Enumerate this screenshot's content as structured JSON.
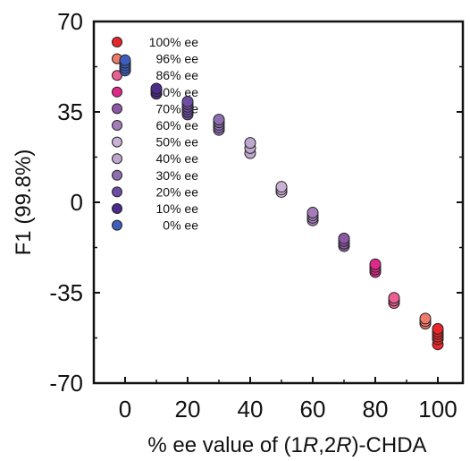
{
  "chart_data": {
    "type": "scatter",
    "title": "",
    "xlabel": {
      "parts": [
        {
          "text": "% ee value of (1",
          "italic": false
        },
        {
          "text": "R",
          "italic": true
        },
        {
          "text": ",2",
          "italic": false
        },
        {
          "text": "R",
          "italic": true
        },
        {
          "text": ")-CHDA",
          "italic": false
        }
      ]
    },
    "ylabel": "F1 (99.8%)",
    "xlim": [
      -10,
      108
    ],
    "ylim": [
      70,
      -70
    ],
    "y_inverted": true,
    "xticks": [
      {
        "value": 0,
        "label": "0"
      },
      {
        "value": 20,
        "label": "20"
      },
      {
        "value": 40,
        "label": "40"
      },
      {
        "value": 60,
        "label": "60"
      },
      {
        "value": 80,
        "label": "80"
      },
      {
        "value": 100,
        "label": "100"
      }
    ],
    "yticks": [
      {
        "value": -70,
        "label": "-70"
      },
      {
        "value": -35,
        "label": "-35"
      },
      {
        "value": 0,
        "label": "0"
      },
      {
        "value": 35,
        "label": "35"
      },
      {
        "value": 70,
        "label": "70"
      }
    ],
    "grid": false,
    "legend_position": "top-left",
    "series": [
      {
        "name": "100% ee",
        "color": "#e8262b",
        "x": 100,
        "y": [
          -55,
          -53,
          -52,
          -51,
          -50,
          -49
        ]
      },
      {
        "name": "96% ee",
        "color": "#ef7b6a",
        "x": 96,
        "y": [
          -47,
          -46,
          -45
        ]
      },
      {
        "name": "86% ee",
        "color": "#ec5f93",
        "x": 86,
        "y": [
          -39,
          -38,
          -37
        ]
      },
      {
        "name": "80% ee",
        "color": "#e0288a",
        "x": 80,
        "y": [
          -27,
          -26,
          -25,
          -24
        ]
      },
      {
        "name": "70% ee",
        "color": "#8c58a5",
        "x": 70,
        "y": [
          -17,
          -16,
          -15,
          -14
        ]
      },
      {
        "name": "60% ee",
        "color": "#a47cba",
        "x": 60,
        "y": [
          -7,
          -6,
          -5,
          -4
        ]
      },
      {
        "name": "50% ee",
        "color": "#c9b1d6",
        "x": 50,
        "y": [
          4,
          5,
          6
        ]
      },
      {
        "name": "40% ee",
        "color": "#bfa8cf",
        "x": 40,
        "y": [
          19,
          21,
          23
        ]
      },
      {
        "name": "30% ee",
        "color": "#8d6fb0",
        "x": 30,
        "y": [
          28,
          29,
          30,
          31,
          32
        ]
      },
      {
        "name": "20% ee",
        "color": "#6e4ea3",
        "x": 20,
        "y": [
          34,
          35,
          36,
          37,
          38,
          39
        ]
      },
      {
        "name": "10% ee",
        "color": "#4b2c8b",
        "x": 10,
        "y": [
          42,
          43,
          44
        ]
      },
      {
        "name": "0% ee",
        "color": "#3e5ebd",
        "x": 0,
        "y": [
          51,
          52,
          53,
          54,
          55
        ]
      }
    ]
  }
}
